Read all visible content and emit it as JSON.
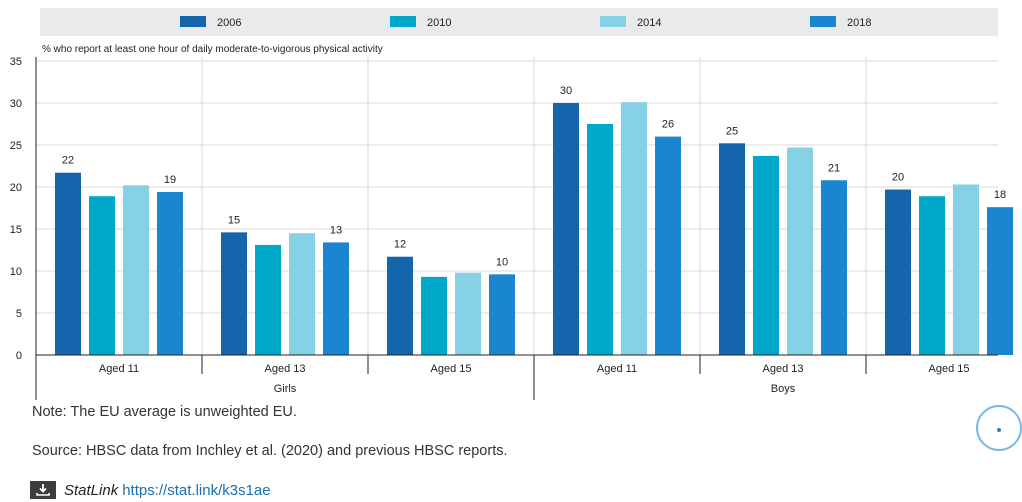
{
  "chart_data": {
    "type": "bar",
    "title": "",
    "ylabel": "% who report at least one hour of daily moderate-to-vigorous physical activity",
    "xlabel": "",
    "ylim": [
      0,
      35
    ],
    "yticks": [
      0,
      5,
      10,
      15,
      20,
      25,
      30,
      35
    ],
    "grid": true,
    "legend_position": "top",
    "series": [
      {
        "name": "2006",
        "color": "#1565ad",
        "values": [
          21.7,
          14.6,
          11.7,
          30.0,
          25.2,
          19.7
        ]
      },
      {
        "name": "2010",
        "color": "#00a8c9",
        "values": [
          18.9,
          13.1,
          9.3,
          27.5,
          23.7,
          18.9
        ]
      },
      {
        "name": "2014",
        "color": "#87d1e7",
        "values": [
          20.2,
          14.5,
          9.8,
          30.1,
          24.7,
          20.3
        ]
      },
      {
        "name": "2018",
        "color": "#1c85cf",
        "values": [
          19.4,
          13.4,
          9.6,
          26.0,
          20.8,
          17.6
        ]
      }
    ],
    "categories": [
      "Aged 11",
      "Aged 13",
      "Aged 15",
      "Aged 11",
      "Aged 13",
      "Aged 15"
    ],
    "groups": [
      {
        "label": "Girls",
        "span": [
          0,
          2
        ]
      },
      {
        "label": "Boys",
        "span": [
          3,
          5
        ]
      }
    ],
    "data_labels": [
      {
        "category": 0,
        "series": 0,
        "text": "22"
      },
      {
        "category": 0,
        "series": 3,
        "text": "19"
      },
      {
        "category": 1,
        "series": 0,
        "text": "15"
      },
      {
        "category": 1,
        "series": 3,
        "text": "13"
      },
      {
        "category": 2,
        "series": 0,
        "text": "12"
      },
      {
        "category": 2,
        "series": 3,
        "text": "10"
      },
      {
        "category": 3,
        "series": 0,
        "text": "30"
      },
      {
        "category": 3,
        "series": 3,
        "text": "26"
      },
      {
        "category": 4,
        "series": 0,
        "text": "25"
      },
      {
        "category": 4,
        "series": 3,
        "text": "21"
      },
      {
        "category": 5,
        "series": 0,
        "text": "20"
      },
      {
        "category": 5,
        "series": 3,
        "text": "18"
      }
    ]
  },
  "notes": {
    "note": "Note: The EU average is unweighted EU.",
    "source": "Source: HBSC data from Inchley et al. (2020) and previous HBSC reports."
  },
  "statlink": {
    "brand": "StatLink",
    "url": "https://stat.link/k3s1ae",
    "icon": "download-icon"
  },
  "side_button": {
    "icon": "chevron-left-icon"
  }
}
